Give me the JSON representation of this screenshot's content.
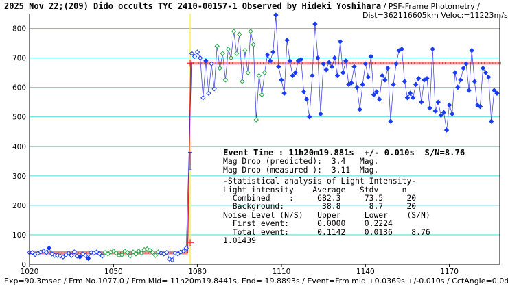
{
  "header": {
    "title_bold": "2025 Nov 22;(209) Dido occults TYC 2410-00157-1 Observed by Hideki Yoshihara",
    "title_rest": " / PSF-Frame Photometry /",
    "title_line2": "Dist=362116605km Veloc:=11223m/sec"
  },
  "footer": {
    "text": "Exp=90.3msec / Frm No.1077.0 / Frm Mid= 11h20m19.8441s, End= 19.8893s / Event=Frm mid +0.0369s +/-0.010s / CctAngle=0.0deg"
  },
  "stats": {
    "event_time": "Event Time : 11h20m19.881s  +/- 0.010s  S/N=8.76",
    "mag_pred": "Mag Drop (predicted):  3.4   Mag.",
    "mag_meas": "Mag Drop (measured ):  3.11  Mag.",
    "stat_header": "-Statistical analysis of Light Intensity-",
    "col_header": "Light intensity    Average   Stdv     n",
    "combined": "  Combined    :     682.3     73.5     20",
    "background": "  Background:        38.8      8.7     20",
    "noise_header": "Noise Level (N/S)   Upper     Lower    (S/N)",
    "first_event": "  First event:      0.0000    0.2224",
    "total_event": "  Total event:      0.1142    0.0136    8.76",
    "ratio": "1.01439"
  },
  "chart_data": {
    "type": "line",
    "x_ticks": [
      1020,
      1050,
      1080,
      1110,
      1140,
      1170
    ],
    "y_ticks": [
      0,
      100,
      200,
      300,
      400,
      500,
      600,
      700,
      800
    ],
    "xlim": [
      1020,
      1188
    ],
    "ylim": [
      0,
      850
    ],
    "grid": true,
    "colors": {
      "grid": "#44dddd",
      "line": "#3333dd",
      "point": "#1a3cf0",
      "green": "#22aa44",
      "mean_line": "#cc3333",
      "mean_marker": "#ee9999",
      "event_line": "#ffee55",
      "fit": "#ee2222",
      "event_cross": "#ff2222"
    },
    "event_frame": 1077.4,
    "event_errorbar": [
      320,
      380
    ],
    "background_level": 38.8,
    "combined_level": 682.3,
    "series": [
      {
        "x": 1020,
        "y": 40,
        "style": "open-blue"
      },
      {
        "x": 1021,
        "y": 40,
        "style": "open-blue"
      },
      {
        "x": 1022,
        "y": 33,
        "style": "open-blue"
      },
      {
        "x": 1023,
        "y": 37,
        "style": "open-blue"
      },
      {
        "x": 1024,
        "y": 42,
        "style": "open-blue"
      },
      {
        "x": 1025,
        "y": 45,
        "style": "open-blue"
      },
      {
        "x": 1026,
        "y": 40,
        "style": "open-blue"
      },
      {
        "x": 1027,
        "y": 55,
        "style": "filled-blue"
      },
      {
        "x": 1028,
        "y": 35,
        "style": "open-blue"
      },
      {
        "x": 1029,
        "y": 30,
        "style": "open-blue"
      },
      {
        "x": 1030,
        "y": 30,
        "style": "open-blue"
      },
      {
        "x": 1031,
        "y": 28,
        "style": "open-blue"
      },
      {
        "x": 1032,
        "y": 25,
        "style": "open-blue"
      },
      {
        "x": 1033,
        "y": 32,
        "style": "open-blue"
      },
      {
        "x": 1034,
        "y": 38,
        "style": "open-blue"
      },
      {
        "x": 1035,
        "y": 30,
        "style": "open-blue"
      },
      {
        "x": 1036,
        "y": 42,
        "style": "open-blue"
      },
      {
        "x": 1037,
        "y": 28,
        "style": "open-blue"
      },
      {
        "x": 1038,
        "y": 25,
        "style": "filled-blue"
      },
      {
        "x": 1039,
        "y": 35,
        "style": "open-blue"
      },
      {
        "x": 1040,
        "y": 30,
        "style": "open-blue"
      },
      {
        "x": 1041,
        "y": 20,
        "style": "filled-blue"
      },
      {
        "x": 1042,
        "y": 40,
        "style": "open-blue"
      },
      {
        "x": 1043,
        "y": 38,
        "style": "open-blue"
      },
      {
        "x": 1044,
        "y": 42,
        "style": "open-blue"
      },
      {
        "x": 1045,
        "y": 36,
        "style": "open-blue"
      },
      {
        "x": 1046,
        "y": 28,
        "style": "open-blue"
      },
      {
        "x": 1047,
        "y": 40,
        "style": "green"
      },
      {
        "x": 1048,
        "y": 35,
        "style": "green"
      },
      {
        "x": 1049,
        "y": 42,
        "style": "green"
      },
      {
        "x": 1050,
        "y": 45,
        "style": "green"
      },
      {
        "x": 1051,
        "y": 38,
        "style": "green"
      },
      {
        "x": 1052,
        "y": 30,
        "style": "green"
      },
      {
        "x": 1053,
        "y": 32,
        "style": "green"
      },
      {
        "x": 1054,
        "y": 45,
        "style": "green"
      },
      {
        "x": 1055,
        "y": 40,
        "style": "green"
      },
      {
        "x": 1056,
        "y": 28,
        "style": "green"
      },
      {
        "x": 1057,
        "y": 42,
        "style": "green"
      },
      {
        "x": 1058,
        "y": 35,
        "style": "green"
      },
      {
        "x": 1059,
        "y": 45,
        "style": "green"
      },
      {
        "x": 1060,
        "y": 38,
        "style": "green"
      },
      {
        "x": 1061,
        "y": 50,
        "style": "green"
      },
      {
        "x": 1062,
        "y": 52,
        "style": "green"
      },
      {
        "x": 1063,
        "y": 48,
        "style": "green"
      },
      {
        "x": 1064,
        "y": 40,
        "style": "green"
      },
      {
        "x": 1065,
        "y": 30,
        "style": "green"
      },
      {
        "x": 1066,
        "y": 42,
        "style": "green"
      },
      {
        "x": 1067,
        "y": 38,
        "style": "open-blue"
      },
      {
        "x": 1068,
        "y": 35,
        "style": "open-blue"
      },
      {
        "x": 1069,
        "y": 40,
        "style": "open-blue"
      },
      {
        "x": 1070,
        "y": 18,
        "style": "open-blue"
      },
      {
        "x": 1071,
        "y": 15,
        "style": "open-blue"
      },
      {
        "x": 1072,
        "y": 38,
        "style": "open-blue"
      },
      {
        "x": 1073,
        "y": 35,
        "style": "open-blue"
      },
      {
        "x": 1074,
        "y": 42,
        "style": "open-blue"
      },
      {
        "x": 1075,
        "y": 45,
        "style": "open-blue"
      },
      {
        "x": 1076,
        "y": 55,
        "style": "open-blue"
      },
      {
        "x": 1078,
        "y": 715,
        "style": "open-blue"
      },
      {
        "x": 1079,
        "y": 705,
        "style": "open-blue"
      },
      {
        "x": 1080,
        "y": 720,
        "style": "open-blue"
      },
      {
        "x": 1081,
        "y": 700,
        "style": "open-blue"
      },
      {
        "x": 1082,
        "y": 565,
        "style": "open-blue"
      },
      {
        "x": 1083,
        "y": 690,
        "style": "filled-blue"
      },
      {
        "x": 1084,
        "y": 580,
        "style": "open-blue"
      },
      {
        "x": 1085,
        "y": 680,
        "style": "open-blue"
      },
      {
        "x": 1086,
        "y": 595,
        "style": "open-blue"
      },
      {
        "x": 1087,
        "y": 740,
        "style": "green"
      },
      {
        "x": 1088,
        "y": 665,
        "style": "green"
      },
      {
        "x": 1089,
        "y": 715,
        "style": "green"
      },
      {
        "x": 1090,
        "y": 625,
        "style": "green"
      },
      {
        "x": 1091,
        "y": 730,
        "style": "green"
      },
      {
        "x": 1092,
        "y": 700,
        "style": "green"
      },
      {
        "x": 1093,
        "y": 790,
        "style": "green"
      },
      {
        "x": 1094,
        "y": 715,
        "style": "green"
      },
      {
        "x": 1095,
        "y": 780,
        "style": "green"
      },
      {
        "x": 1096,
        "y": 620,
        "style": "green"
      },
      {
        "x": 1097,
        "y": 725,
        "style": "green"
      },
      {
        "x": 1098,
        "y": 650,
        "style": "green"
      },
      {
        "x": 1099,
        "y": 790,
        "style": "green"
      },
      {
        "x": 1100,
        "y": 745,
        "style": "green"
      },
      {
        "x": 1101,
        "y": 490,
        "style": "green"
      },
      {
        "x": 1102,
        "y": 640,
        "style": "green"
      },
      {
        "x": 1103,
        "y": 575,
        "style": "green"
      },
      {
        "x": 1104,
        "y": 650,
        "style": "green"
      },
      {
        "x": 1105,
        "y": 710,
        "style": "filled-blue"
      },
      {
        "x": 1106,
        "y": 690,
        "style": "filled-blue"
      },
      {
        "x": 1107,
        "y": 720,
        "style": "filled-blue"
      },
      {
        "x": 1108,
        "y": 845,
        "style": "filled-blue"
      },
      {
        "x": 1109,
        "y": 670,
        "style": "filled-blue"
      },
      {
        "x": 1110,
        "y": 625,
        "style": "filled-blue"
      },
      {
        "x": 1111,
        "y": 580,
        "style": "filled-blue"
      },
      {
        "x": 1112,
        "y": 760,
        "style": "filled-blue"
      },
      {
        "x": 1113,
        "y": 690,
        "style": "filled-blue"
      },
      {
        "x": 1114,
        "y": 640,
        "style": "filled-blue"
      },
      {
        "x": 1115,
        "y": 650,
        "style": "filled-blue"
      },
      {
        "x": 1116,
        "y": 690,
        "style": "filled-blue"
      },
      {
        "x": 1117,
        "y": 695,
        "style": "filled-blue"
      },
      {
        "x": 1118,
        "y": 585,
        "style": "filled-blue"
      },
      {
        "x": 1119,
        "y": 560,
        "style": "filled-blue"
      },
      {
        "x": 1120,
        "y": 500,
        "style": "filled-blue"
      },
      {
        "x": 1121,
        "y": 640,
        "style": "filled-blue"
      },
      {
        "x": 1122,
        "y": 815,
        "style": "filled-blue"
      },
      {
        "x": 1123,
        "y": 700,
        "style": "filled-blue"
      },
      {
        "x": 1124,
        "y": 510,
        "style": "filled-blue"
      },
      {
        "x": 1125,
        "y": 680,
        "style": "filled-blue"
      },
      {
        "x": 1126,
        "y": 660,
        "style": "filled-blue"
      },
      {
        "x": 1127,
        "y": 685,
        "style": "filled-blue"
      },
      {
        "x": 1128,
        "y": 670,
        "style": "filled-blue"
      },
      {
        "x": 1129,
        "y": 700,
        "style": "filled-blue"
      },
      {
        "x": 1130,
        "y": 640,
        "style": "filled-blue"
      },
      {
        "x": 1131,
        "y": 755,
        "style": "filled-blue"
      },
      {
        "x": 1132,
        "y": 650,
        "style": "filled-blue"
      },
      {
        "x": 1133,
        "y": 690,
        "style": "filled-blue"
      },
      {
        "x": 1134,
        "y": 610,
        "style": "filled-blue"
      },
      {
        "x": 1135,
        "y": 615,
        "style": "filled-blue"
      },
      {
        "x": 1136,
        "y": 670,
        "style": "filled-blue"
      },
      {
        "x": 1137,
        "y": 600,
        "style": "filled-blue"
      },
      {
        "x": 1138,
        "y": 525,
        "style": "filled-blue"
      },
      {
        "x": 1139,
        "y": 610,
        "style": "filled-blue"
      },
      {
        "x": 1140,
        "y": 680,
        "style": "filled-blue"
      },
      {
        "x": 1141,
        "y": 635,
        "style": "filled-blue"
      },
      {
        "x": 1142,
        "y": 705,
        "style": "filled-blue"
      },
      {
        "x": 1143,
        "y": 575,
        "style": "filled-blue"
      },
      {
        "x": 1144,
        "y": 585,
        "style": "filled-blue"
      },
      {
        "x": 1145,
        "y": 560,
        "style": "filled-blue"
      },
      {
        "x": 1146,
        "y": 640,
        "style": "filled-blue"
      },
      {
        "x": 1147,
        "y": 625,
        "style": "filled-blue"
      },
      {
        "x": 1148,
        "y": 665,
        "style": "filled-blue"
      },
      {
        "x": 1149,
        "y": 485,
        "style": "filled-blue"
      },
      {
        "x": 1150,
        "y": 610,
        "style": "filled-blue"
      },
      {
        "x": 1151,
        "y": 680,
        "style": "filled-blue"
      },
      {
        "x": 1152,
        "y": 725,
        "style": "filled-blue"
      },
      {
        "x": 1153,
        "y": 730,
        "style": "filled-blue"
      },
      {
        "x": 1154,
        "y": 620,
        "style": "filled-blue"
      },
      {
        "x": 1155,
        "y": 565,
        "style": "filled-blue"
      },
      {
        "x": 1156,
        "y": 580,
        "style": "filled-blue"
      },
      {
        "x": 1157,
        "y": 565,
        "style": "filled-blue"
      },
      {
        "x": 1158,
        "y": 610,
        "style": "filled-blue"
      },
      {
        "x": 1159,
        "y": 630,
        "style": "filled-blue"
      },
      {
        "x": 1160,
        "y": 550,
        "style": "filled-blue"
      },
      {
        "x": 1161,
        "y": 625,
        "style": "filled-blue"
      },
      {
        "x": 1162,
        "y": 630,
        "style": "filled-blue"
      },
      {
        "x": 1163,
        "y": 530,
        "style": "filled-blue"
      },
      {
        "x": 1164,
        "y": 730,
        "style": "filled-blue"
      },
      {
        "x": 1165,
        "y": 520,
        "style": "filled-blue"
      },
      {
        "x": 1166,
        "y": 550,
        "style": "filled-blue"
      },
      {
        "x": 1167,
        "y": 505,
        "style": "filled-blue"
      },
      {
        "x": 1168,
        "y": 515,
        "style": "filled-blue"
      },
      {
        "x": 1169,
        "y": 455,
        "style": "filled-blue"
      },
      {
        "x": 1170,
        "y": 540,
        "style": "filled-blue"
      },
      {
        "x": 1171,
        "y": 510,
        "style": "filled-blue"
      },
      {
        "x": 1172,
        "y": 650,
        "style": "filled-blue"
      },
      {
        "x": 1173,
        "y": 600,
        "style": "filled-blue"
      },
      {
        "x": 1174,
        "y": 625,
        "style": "filled-blue"
      },
      {
        "x": 1175,
        "y": 665,
        "style": "filled-blue"
      },
      {
        "x": 1176,
        "y": 680,
        "style": "filled-blue"
      },
      {
        "x": 1177,
        "y": 590,
        "style": "filled-blue"
      },
      {
        "x": 1178,
        "y": 725,
        "style": "filled-blue"
      },
      {
        "x": 1179,
        "y": 620,
        "style": "filled-blue"
      },
      {
        "x": 1180,
        "y": 540,
        "style": "filled-blue"
      },
      {
        "x": 1181,
        "y": 535,
        "style": "filled-blue"
      },
      {
        "x": 1182,
        "y": 665,
        "style": "filled-blue"
      },
      {
        "x": 1183,
        "y": 650,
        "style": "filled-blue"
      },
      {
        "x": 1184,
        "y": 635,
        "style": "filled-blue"
      },
      {
        "x": 1185,
        "y": 485,
        "style": "filled-blue"
      },
      {
        "x": 1186,
        "y": 590,
        "style": "filled-blue"
      },
      {
        "x": 1187,
        "y": 580,
        "style": "filled-blue"
      }
    ]
  }
}
